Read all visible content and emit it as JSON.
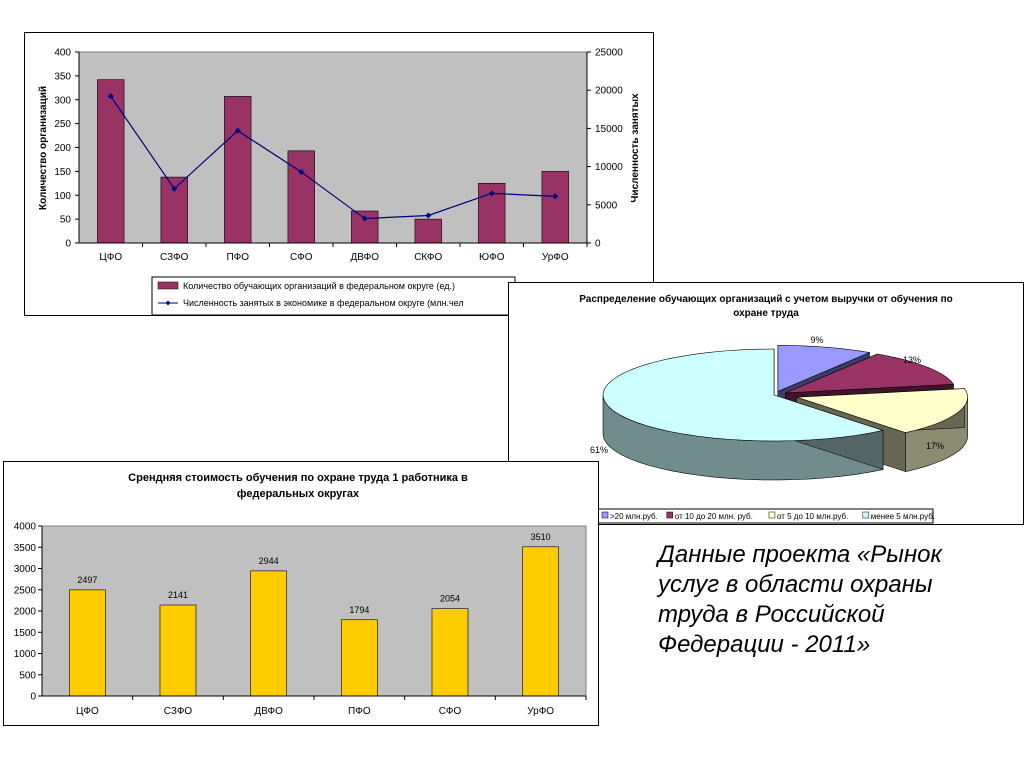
{
  "caption": "Данные проекта «Рынок услуг в области охраны труда в Российской Федерации - 2011»",
  "chart_data": [
    {
      "type": "bar",
      "categories": [
        "ЦФО",
        "СЗФО",
        "ПФО",
        "СФО",
        "ДВФО",
        "СКФО",
        "ЮФО",
        "УрФО"
      ],
      "series": [
        {
          "name": "Количество обучающих организаций в федеральном округе (ед.)",
          "values": [
            342,
            138,
            307,
            193,
            67,
            50,
            125,
            150
          ],
          "color": "#993366",
          "axis": "left"
        },
        {
          "name": "Численность занятых в экономике в федеральном округе (млн.чел",
          "values": [
            19200,
            7100,
            14700,
            9300,
            3200,
            3600,
            6500,
            6100
          ],
          "color": "#000080",
          "axis": "right",
          "style": "line"
        }
      ],
      "ylabel": "Количество организаций",
      "y2label": "Численность занятых",
      "ylim": [
        0,
        400
      ],
      "yticks": [
        0,
        50,
        100,
        150,
        200,
        250,
        300,
        350,
        400
      ],
      "y2lim": [
        0,
        25000
      ],
      "y2ticks": [
        0,
        5000,
        10000,
        15000,
        20000,
        25000
      ],
      "plot_bg": "#c0c0c0",
      "legend": "bottom"
    },
    {
      "type": "pie",
      "title": "Распределение обучающих организаций с учетом выручки от обучения по охране труда",
      "slices": [
        {
          "label": ">20 млн.руб.",
          "value": 9,
          "text": "9%",
          "color": "#9999ff"
        },
        {
          "label": "от 10 до 20 млн. руб.",
          "value": 13,
          "text": "13%",
          "color": "#993366"
        },
        {
          "label": "от 5 до 10 млн.руб.",
          "value": 17,
          "text": "17%",
          "color": "#ffffcc"
        },
        {
          "label": "менее 5 млн.руб.",
          "value": 61,
          "text": "61%",
          "color": "#ccffff"
        }
      ],
      "legend": "bottom"
    },
    {
      "type": "bar",
      "title": "Срендняя стоимость обучения по охране труда 1 работника в федеральных округах",
      "categories": [
        "ЦФО",
        "СЗФО",
        "ДВФО",
        "ПФО",
        "СФО",
        "УрФО"
      ],
      "values": [
        2497,
        2141,
        2944,
        1794,
        2054,
        3510
      ],
      "ylim": [
        0,
        4000
      ],
      "yticks": [
        0,
        500,
        1000,
        1500,
        2000,
        2500,
        3000,
        3500,
        4000
      ],
      "bar_color": "#ffcc00",
      "plot_bg": "#c0c0c0"
    }
  ]
}
